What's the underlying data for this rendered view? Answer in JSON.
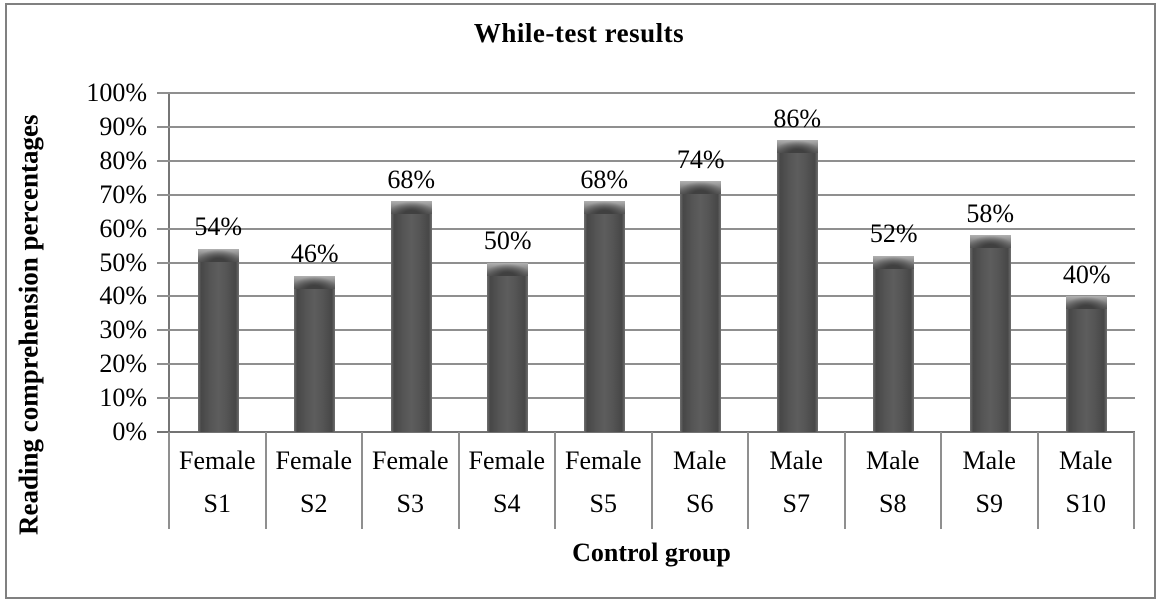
{
  "chart_data": {
    "type": "bar",
    "title": "While-test results",
    "xlabel": "Control group",
    "ylabel": "Reading comprehension percentages",
    "categories": [
      "S1",
      "S2",
      "S3",
      "S4",
      "S5",
      "S6",
      "S7",
      "S8",
      "S9",
      "S10"
    ],
    "group_labels": [
      "Female",
      "Female",
      "Female",
      "Female",
      "Female",
      "Male",
      "Male",
      "Male",
      "Male",
      "Male"
    ],
    "values": [
      54,
      46,
      68,
      50,
      68,
      74,
      86,
      52,
      58,
      40
    ],
    "data_labels": [
      "54%",
      "46%",
      "68%",
      "50%",
      "68%",
      "74%",
      "86%",
      "52%",
      "58%",
      "40%"
    ],
    "ylim": [
      0,
      100
    ],
    "ytick_interval": 10,
    "ytick_labels": [
      "0%",
      "10%",
      "20%",
      "30%",
      "40%",
      "50%",
      "60%",
      "70%",
      "80%",
      "90%",
      "100%"
    ],
    "grid": true,
    "legend": "none",
    "bar_color": "#555555",
    "gridline_color": "#8f8f8f",
    "frame_color": "#808080"
  }
}
